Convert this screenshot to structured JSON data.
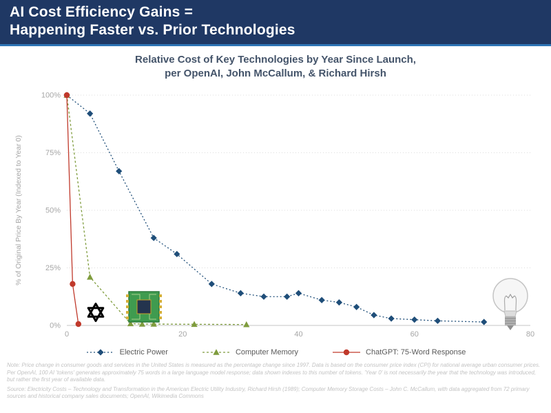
{
  "header": {
    "title_line1": "AI Cost Efficiency Gains =",
    "title_line2": "Happening Faster vs. Prior Technologies"
  },
  "chart_data": {
    "type": "line",
    "title_line1": "Relative Cost of Key Technologies by Year Since Launch,",
    "title_line2": "per OpenAI, John McCallum, & Richard Hirsh",
    "xlabel": "",
    "ylabel": "% of Original Price By Year (Indexed to Year 0)",
    "xlim": [
      0,
      80
    ],
    "ylim": [
      0,
      100
    ],
    "x_ticks": [
      0,
      20,
      40,
      60,
      80
    ],
    "y_ticks": [
      0,
      25,
      50,
      75,
      100
    ],
    "y_tick_suffix": "%",
    "grid": "horizontal-dotted",
    "legend_position": "bottom",
    "series": [
      {
        "name": "Electric Power",
        "color": "#1F4E79",
        "marker": "diamond",
        "dash": "2,3",
        "points": [
          [
            0,
            100
          ],
          [
            4,
            92
          ],
          [
            9,
            67
          ],
          [
            15,
            38
          ],
          [
            19,
            31
          ],
          [
            25,
            18
          ],
          [
            30,
            14
          ],
          [
            34,
            12.5
          ],
          [
            38,
            12.5
          ],
          [
            40,
            14
          ],
          [
            44,
            11
          ],
          [
            47,
            10
          ],
          [
            50,
            8
          ],
          [
            53,
            4.5
          ],
          [
            56,
            3
          ],
          [
            60,
            2.5
          ],
          [
            64,
            2
          ],
          [
            72,
            1.5
          ]
        ]
      },
      {
        "name": "Computer Memory",
        "color": "#7F9C3D",
        "marker": "triangle",
        "dash": "3,3",
        "points": [
          [
            0,
            100
          ],
          [
            4,
            21
          ],
          [
            11,
            0.8
          ],
          [
            13,
            0.6
          ],
          [
            15,
            0.6
          ],
          [
            22,
            0.5
          ],
          [
            31,
            0.4
          ]
        ]
      },
      {
        "name": "ChatGPT: 75-Word Response",
        "color": "#C0392B",
        "marker": "circle",
        "dash": "",
        "points": [
          [
            0,
            100
          ],
          [
            1,
            18
          ],
          [
            2,
            0.6
          ]
        ]
      }
    ]
  },
  "icons": {
    "openai_logo": "openai-logo",
    "memory_chip": "memory-chip-image",
    "lightbulb": "incandescent-lightbulb-image"
  },
  "colors": {
    "header_bg": "#1F3864",
    "header_rule": "#2E74B5",
    "chart_title": "#44546A",
    "axis_text": "#A6A6A6",
    "gridline": "#DCDCDC",
    "legend_text": "#595959",
    "note_text": "#C3C3C3"
  },
  "notes": {
    "note": "Note: Price change in consumer goods and services in the United States is measured as the percentage change since 1997. Data is based on the consumer price index (CPI) for national average urban consumer prices. Per OpenAI, 100 AI 'tokens' generates approximately 75 words in a large language model response; data shown indexes to this number of tokens. 'Year 0' is not necessarily the year that the technology was introduced, but rather the first year of available data.",
    "source": "Source: Electricity Costs – Technology and Transformation in the American Electric Utility Industry, Richard Hirsh (1989); Computer Memory Storage Costs – John C. McCallum, with data aggregated from 72 primary sources and historical company sales documents; OpenAI, Wikimedia Commons"
  }
}
